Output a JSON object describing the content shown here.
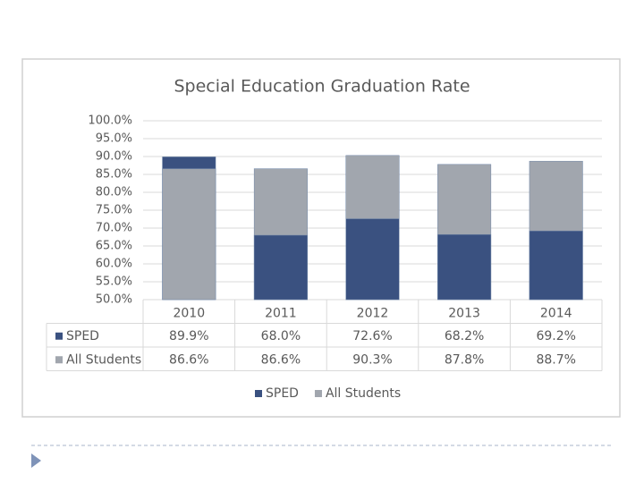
{
  "chart_data": {
    "type": "bar",
    "title": "Special Education Graduation Rate",
    "categories": [
      "2010",
      "2011",
      "2012",
      "2013",
      "2014"
    ],
    "series": [
      {
        "name": "SPED",
        "color": "#3a5180",
        "values": [
          89.9,
          68.0,
          72.6,
          68.2,
          69.2
        ],
        "value_labels": [
          "89.9%",
          "68.0%",
          "72.6%",
          "68.2%",
          "69.2%"
        ]
      },
      {
        "name": "All Students",
        "color": "#a1a6ae",
        "values": [
          86.6,
          86.6,
          90.3,
          87.8,
          88.7
        ],
        "value_labels": [
          "86.6%",
          "86.6%",
          "90.3%",
          "87.8%",
          "88.7%"
        ]
      }
    ],
    "ylim": [
      50,
      100
    ],
    "yticks": [
      {
        "value": 50,
        "label": "50.0%"
      },
      {
        "value": 55,
        "label": "55.0%"
      },
      {
        "value": 60,
        "label": "60.0%"
      },
      {
        "value": 65,
        "label": "65.0%"
      },
      {
        "value": 70,
        "label": "70.0%"
      },
      {
        "value": 75,
        "label": "75.0%"
      },
      {
        "value": 80,
        "label": "80.0%"
      },
      {
        "value": 85,
        "label": "85.0%"
      },
      {
        "value": 90,
        "label": "90.0%"
      },
      {
        "value": 95,
        "label": "95.0%"
      },
      {
        "value": 100,
        "label": "100.0%"
      }
    ],
    "grid": true,
    "legend": "bottom"
  }
}
